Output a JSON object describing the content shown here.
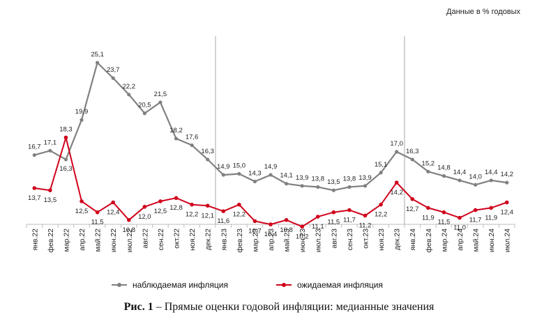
{
  "note": "Данные в % годовых",
  "caption": {
    "prefix": "Рис. 1",
    "text": " – Прямые оценки годовой инфляции: медианные значения"
  },
  "chart_data": {
    "type": "line",
    "title": "",
    "xlabel": "",
    "ylabel": "",
    "ylim": [
      8,
      27
    ],
    "grid": false,
    "legend_position": "bottom",
    "categories": [
      "янв.22",
      "фев.22",
      "мар.22",
      "апр.22",
      "май.22",
      "июн.22",
      "июл.22",
      "авг.22",
      "сен.22",
      "окт.22",
      "ноя.22",
      "дек.22",
      "янв.23",
      "фев.23",
      "мар.23",
      "апр.23",
      "май.23",
      "июн.23",
      "июл.23",
      "авг.23",
      "сен.23",
      "окт.23",
      "ноя.23",
      "дек.23",
      "янв.24",
      "фев.24",
      "мар.24",
      "апр.24",
      "май.24",
      "июн.24",
      "июл.24"
    ],
    "value_labels": {
      "observed": [
        "16,7",
        "17,1",
        "16,3",
        "19,9",
        "25,1",
        "23,7",
        "22,2",
        "20,5",
        "21,5",
        "18,2",
        "17,6",
        "16,3",
        "14,9",
        "15,0",
        "14,3",
        "14,9",
        "14,1",
        "13,9",
        "13,8",
        "13,5",
        "13,8",
        "13,9",
        "15,1",
        "17,0",
        "16,3",
        "15,2",
        "14,8",
        "14,4",
        "14,0",
        "14,4",
        "14,2"
      ],
      "expected": [
        "13,7",
        "13,5",
        "18,3",
        "12,5",
        "11,5",
        "12,4",
        "10,8",
        "12,0",
        "12,5",
        "12,8",
        "12,2",
        "12,1",
        "11,6",
        "12,2",
        "10,7",
        "10,4",
        "10,8",
        "10,2",
        "11,1",
        "11,5",
        "11,7",
        "11,2",
        "12,2",
        "14,2",
        "12,7",
        "11,9",
        "11,5",
        "11,0",
        "11,7",
        "11,9",
        "12,4"
      ]
    },
    "series": [
      {
        "name": "наблюдаемая инфляция",
        "color": "#808080",
        "values": [
          16.7,
          17.1,
          16.3,
          19.9,
          25.1,
          23.7,
          22.2,
          20.5,
          21.5,
          18.2,
          17.6,
          16.3,
          14.9,
          15.0,
          14.3,
          14.9,
          14.1,
          13.9,
          13.8,
          13.5,
          13.8,
          13.9,
          15.1,
          17.0,
          16.3,
          15.2,
          14.8,
          14.4,
          14.0,
          14.4,
          14.2
        ]
      },
      {
        "name": "ожидаемая инфляция",
        "color": "#d0021b",
        "values": [
          13.7,
          13.5,
          18.3,
          12.5,
          11.5,
          12.4,
          10.8,
          12.0,
          12.5,
          12.8,
          12.2,
          12.1,
          11.6,
          12.2,
          10.7,
          10.4,
          10.8,
          10.2,
          11.1,
          11.5,
          11.7,
          11.2,
          12.2,
          14.2,
          12.7,
          11.9,
          11.5,
          11.0,
          11.7,
          11.9,
          12.4
        ]
      }
    ],
    "year_separators_after": [
      "дек.22",
      "дек.23"
    ]
  }
}
